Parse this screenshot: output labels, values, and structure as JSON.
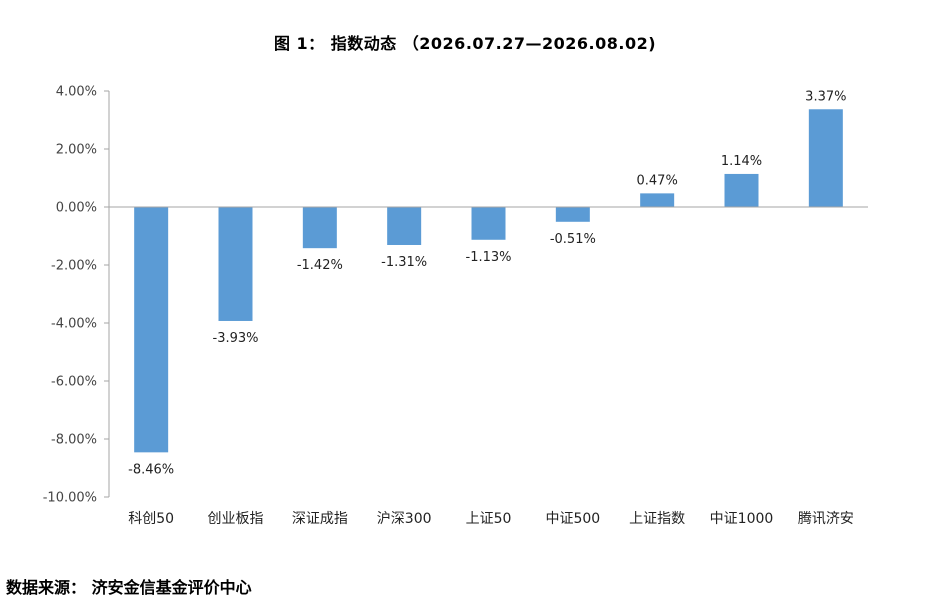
{
  "chart_data": {
    "type": "bar",
    "title": "图 1： 指数动态 （2026.07.27—2026.08.02)",
    "categories": [
      "科创50",
      "创业板指",
      "深证成指",
      "沪深300",
      "上证50",
      "中证500",
      "上证指数",
      "中证1000",
      "腾讯济安"
    ],
    "values": [
      -8.46,
      -3.93,
      -1.42,
      -1.31,
      -1.13,
      -0.51,
      0.47,
      1.14,
      3.37
    ],
    "data_labels": [
      "-8.46%",
      "-3.93%",
      "-1.42%",
      "-1.31%",
      "-1.13%",
      "-0.51%",
      "0.47%",
      "1.14%",
      "3.37%"
    ],
    "y_ticks": [
      4,
      2,
      0,
      -2,
      -4,
      -6,
      -8,
      -10
    ],
    "y_tick_labels": [
      "4.00%",
      "2.00%",
      "0.00%",
      "-2.00%",
      "-4.00%",
      "-6.00%",
      "-8.00%",
      "-10.00%"
    ],
    "ylim": [
      -10,
      4
    ],
    "xlabel": "",
    "ylabel": "",
    "grid": false,
    "legend": "none",
    "bar_color": "#5b9bd5",
    "axis_color": "#a6a6a6"
  },
  "source": {
    "text": "数据来源： 济安金信基金评价中心"
  }
}
